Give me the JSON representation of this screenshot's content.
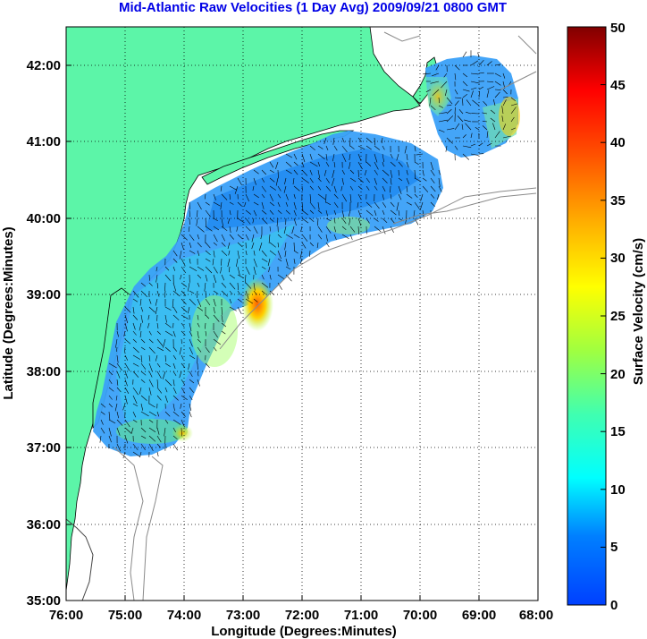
{
  "title": "Mid-Atlantic Raw Velocities (1 Day Avg) 2009/09/21 0800 GMT",
  "map": {
    "xlabel": "Longitude (Degrees:Minutes)",
    "ylabel": "Latitude (Degrees:Minutes)",
    "x_ticks": [
      "76:00",
      "75:00",
      "74:00",
      "73:00",
      "72:00",
      "71:00",
      "70:00",
      "69:00",
      "68:00"
    ],
    "y_ticks": [
      "35:00",
      "36:00",
      "37:00",
      "38:00",
      "39:00",
      "40:00",
      "41:00",
      "42:00"
    ],
    "lon_range": [
      -76,
      -68
    ],
    "lat_range": [
      35,
      42.5
    ],
    "land_color": "#5cf5a8",
    "grid": "dotted"
  },
  "colorbar": {
    "label": "Surface Velocity (cm/s)",
    "ticks": [
      "0",
      "5",
      "10",
      "15",
      "20",
      "25",
      "30",
      "35",
      "40",
      "45",
      "50"
    ],
    "min": 0,
    "max": 50,
    "colormap": "jet"
  }
}
